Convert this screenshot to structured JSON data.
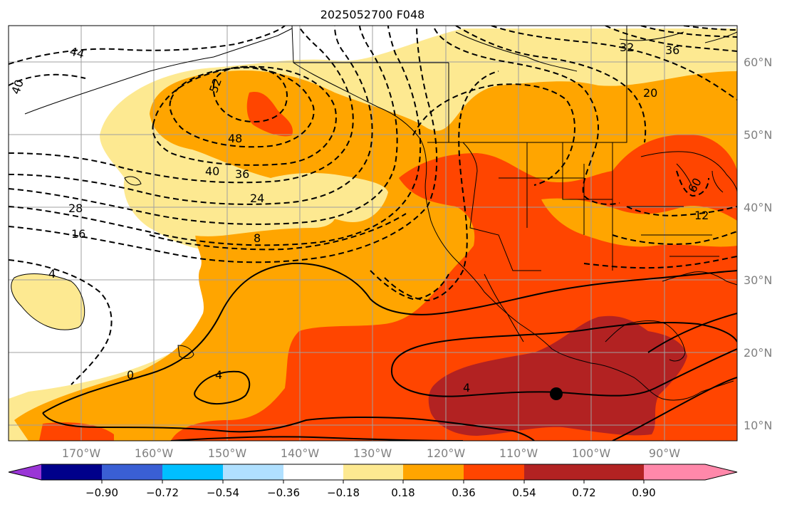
{
  "title": "2025052700 F048",
  "lat_labels": [
    "60°N",
    "50°N",
    "40°N",
    "30°N",
    "20°N",
    "10°N"
  ],
  "lon_labels": [
    "170°W",
    "160°W",
    "150°W",
    "140°W",
    "130°W",
    "120°W",
    "110°W",
    "100°W",
    "90°W"
  ],
  "contour_labels": [
    "44",
    "40",
    "52",
    "48",
    "40",
    "36",
    "24",
    "28",
    "16",
    "8",
    "4",
    "0",
    "4",
    "4",
    "32",
    "36",
    "20",
    "60",
    "12"
  ],
  "colorbar": {
    "tick_labels": [
      "−0.90",
      "−0.72",
      "−0.54",
      "−0.36",
      "−0.18",
      "0.18",
      "0.36",
      "0.54",
      "0.72",
      "0.90"
    ],
    "colors": [
      "#9a35d6",
      "#00008b",
      "#3a5fd4",
      "#00bfff",
      "#b0e0ff",
      "#ffffff",
      "#fde991",
      "#ffa500",
      "#ff4500",
      "#b22222",
      "#ff88aa"
    ]
  },
  "fill_colors": {
    "light": "#fde991",
    "orange": "#ffa500",
    "red_orange": "#ff4500",
    "dark_red": "#b22222"
  },
  "marker": {
    "label": ""
  }
}
